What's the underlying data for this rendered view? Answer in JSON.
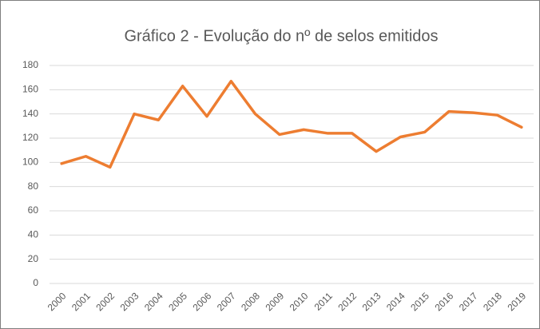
{
  "chart_data": {
    "type": "line",
    "title": "Gráfico 2 - Evolução do nº  de selos emitidos",
    "categories": [
      "2000",
      "2001",
      "2002",
      "2003",
      "2004",
      "2005",
      "2006",
      "2007",
      "2008",
      "2009",
      "2010",
      "2011",
      "2012",
      "2013",
      "2014",
      "2015",
      "2016",
      "2017",
      "2018",
      "2019"
    ],
    "values": [
      99,
      105,
      96,
      140,
      135,
      163,
      138,
      167,
      140,
      123,
      127,
      124,
      124,
      109,
      121,
      125,
      142,
      141,
      139,
      129
    ],
    "color": "#ed7d31",
    "ylim": [
      0,
      180
    ],
    "yticks": [
      0,
      20,
      40,
      60,
      80,
      100,
      120,
      140,
      160,
      180
    ],
    "grid": true
  }
}
